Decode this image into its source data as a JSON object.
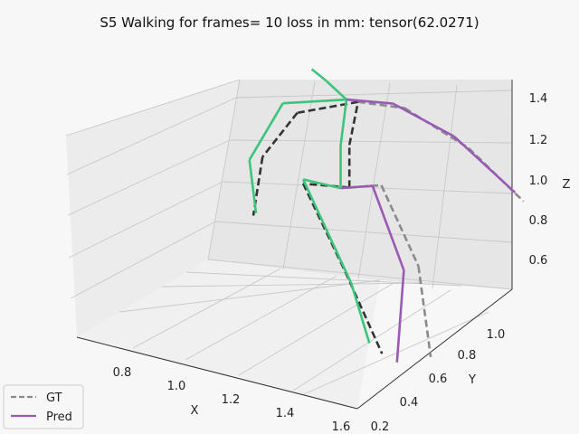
{
  "chart_data": {
    "type": "line",
    "projection": "3d",
    "title": "S5 Walking for frames= 10 loss in mm: tensor(62.0271)",
    "xlabel": "X",
    "ylabel": "Y",
    "zlabel": "Z",
    "xlim": [
      0.65,
      1.6
    ],
    "ylim": [
      0.18,
      1.18
    ],
    "zlim": [
      0.45,
      1.47
    ],
    "x_ticks": [
      "0.8",
      "1.0",
      "1.2",
      "1.4",
      "1.6"
    ],
    "y_ticks": [
      "0.2",
      "0.4",
      "0.6",
      "0.8",
      "1.0"
    ],
    "z_ticks": [
      "0.6",
      "0.8",
      "1.0",
      "1.2",
      "1.4"
    ],
    "grid": true,
    "legend_position": "bottom-left",
    "series": [
      {
        "name": "GT",
        "style": "dashed",
        "joints": {
          "hip": [
            1.18,
            0.72,
            0.92
          ],
          "lhip": [
            1.26,
            0.78,
            0.93
          ],
          "lknee": [
            1.39,
            0.78,
            0.6
          ],
          "lank": [
            1.47,
            0.71,
            0.24
          ],
          "rhip": [
            1.05,
            0.66,
            0.92
          ],
          "rknee": [
            1.24,
            0.58,
            0.62
          ],
          "rank": [
            1.4,
            0.52,
            0.33
          ],
          "spine": [
            1.18,
            0.72,
            1.12
          ],
          "thorax": [
            1.2,
            0.74,
            1.32
          ],
          "lsho": [
            1.31,
            0.84,
            1.28
          ],
          "lelb": [
            1.47,
            0.96,
            1.09
          ],
          "lwri": [
            1.61,
            1.06,
            0.84
          ],
          "rsho": [
            1.04,
            0.64,
            1.26
          ],
          "relb": [
            0.95,
            0.58,
            1.05
          ],
          "rwri": [
            0.96,
            0.5,
            0.82
          ]
        }
      },
      {
        "name": "Pred",
        "style": "solid",
        "joints": {
          "hip": [
            1.16,
            0.7,
            0.92
          ],
          "lhip": [
            1.24,
            0.76,
            0.93
          ],
          "lknee": [
            1.36,
            0.74,
            0.59
          ],
          "lank": [
            1.41,
            0.6,
            0.25
          ],
          "rhip": [
            1.05,
            0.66,
            0.94
          ],
          "rknee": [
            1.25,
            0.6,
            0.56
          ],
          "rank": [
            1.34,
            0.55,
            0.34
          ],
          "spine": [
            1.16,
            0.7,
            1.12
          ],
          "thorax": [
            1.17,
            0.72,
            1.33
          ],
          "head": [
            1.12,
            0.68,
            1.42
          ],
          "headtop": [
            1.08,
            0.66,
            1.47
          ],
          "lsho": [
            1.28,
            0.82,
            1.3
          ],
          "lelb": [
            1.43,
            0.94,
            1.14
          ],
          "lwri": [
            1.58,
            1.06,
            0.87
          ],
          "rsho": [
            1.0,
            0.62,
            1.3
          ],
          "relb": [
            0.92,
            0.55,
            1.04
          ],
          "rwri": [
            0.98,
            0.48,
            0.85
          ]
        }
      }
    ]
  },
  "legend": {
    "gt_label": "GT",
    "pred_label": "Pred"
  },
  "colors": {
    "gt_right": "#333333",
    "gt_left": "#8a8a8a",
    "pred_right": "#3cc47c",
    "pred_left": "#9b59b6"
  }
}
